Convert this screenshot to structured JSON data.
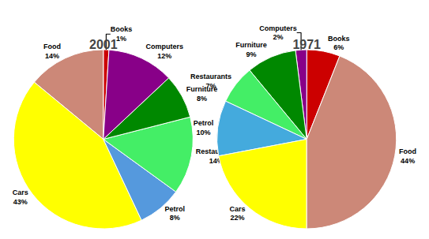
{
  "chart_data": [
    {
      "type": "pie",
      "title": "2001",
      "categories": [
        "Books",
        "Food",
        "Cars",
        "Petrol",
        "Restaurants",
        "Furniture",
        "Computers"
      ],
      "values": [
        1,
        14,
        43,
        8,
        14,
        8,
        12
      ],
      "value_labels": [
        "1%",
        "14%",
        "43%",
        "8%",
        "14%",
        "8%",
        "12%"
      ],
      "colors": [
        "#cc0000",
        "#cc8878",
        "#ffff00",
        "#5599dd",
        "#44ee66",
        "#008800",
        "#880088"
      ]
    },
    {
      "type": "pie",
      "title": "1971",
      "categories": [
        "Books",
        "Computers",
        "Furniture",
        "Restaurants",
        "Petrol",
        "Cars",
        "Food"
      ],
      "values": [
        6,
        2,
        9,
        7,
        10,
        22,
        44
      ],
      "value_labels": [
        "6%",
        "2%",
        "9%",
        "7%",
        "10%",
        "22%",
        "44%"
      ],
      "colors": [
        "#cc0000",
        "#880088",
        "#008800",
        "#44ee66",
        "#44aadd",
        "#ffff00",
        "#cc8878"
      ]
    }
  ]
}
